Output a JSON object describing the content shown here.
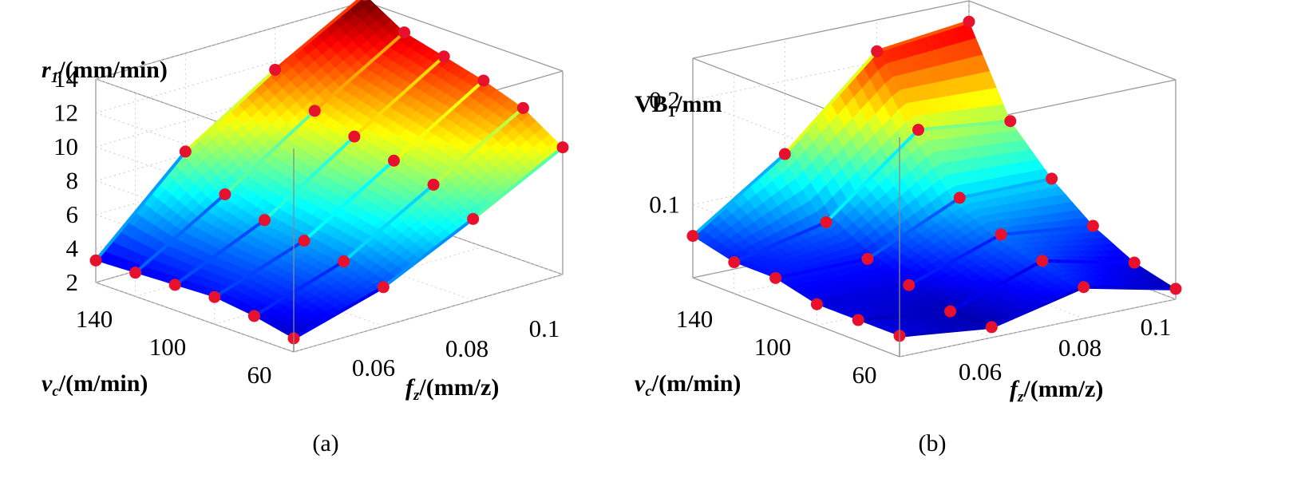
{
  "figure": {
    "panels": [
      "(a)",
      "(b)"
    ]
  },
  "chart_data": [
    {
      "type": "surface3d",
      "panel_label": "(a)",
      "zlabel": {
        "var": "r",
        "sub": "1",
        "unit": "/(mm/min)"
      },
      "xlabel": {
        "var": "f",
        "sub": "z",
        "unit": "/(mm/z)"
      },
      "ylabel": {
        "var": "v",
        "sub": "c",
        "unit": "/(m/min)"
      },
      "x_ticks": [
        "0.06",
        "0.08",
        "0.1"
      ],
      "y_ticks": [
        "140",
        "100",
        "60"
      ],
      "z_ticks": [
        "2",
        "4",
        "6",
        "8",
        "10",
        "12",
        "14"
      ],
      "xlim": [
        0.04,
        0.1
      ],
      "ylim": [
        60,
        160
      ],
      "zlim": [
        2,
        14
      ],
      "grid": true,
      "colormap": "jet",
      "fz": [
        0.04,
        0.06,
        0.08,
        0.1
      ],
      "vc": [
        60,
        80,
        100,
        120,
        140,
        160
      ],
      "values": [
        [
          2.8,
          4.3,
          6.8,
          9.5
        ],
        [
          3.3,
          5.0,
          8.0,
          11.0
        ],
        [
          3.6,
          5.4,
          8.6,
          11.8
        ],
        [
          3.5,
          5.8,
          9.2,
          12.4
        ],
        [
          3.4,
          6.5,
          9.9,
          13.0
        ],
        [
          3.3,
          8.2,
          11.5,
          14.4
        ]
      ],
      "point_color": "#e8112d"
    },
    {
      "type": "surface3d",
      "panel_label": "(b)",
      "zlabel": {
        "var": "VB",
        "sub": "1",
        "unit": "/mm"
      },
      "xlabel": {
        "var": "f",
        "sub": "z",
        "unit": "/(mm/z)"
      },
      "ylabel": {
        "var": "v",
        "sub": "c",
        "unit": "/(m/min)"
      },
      "x_ticks": [
        "0.06",
        "0.08",
        "0.1"
      ],
      "y_ticks": [
        "140",
        "100",
        "60"
      ],
      "z_ticks": [
        "0.1",
        "0.2"
      ],
      "xlim": [
        0.04,
        0.1
      ],
      "ylim": [
        60,
        160
      ],
      "zlim": [
        0.03,
        0.24
      ],
      "grid": true,
      "colormap": "jet",
      "fz": [
        0.04,
        0.06,
        0.08,
        0.1
      ],
      "vc": [
        60,
        80,
        100,
        120,
        140,
        160
      ],
      "values": [
        [
          0.05,
          0.04,
          0.06,
          0.04
        ],
        [
          0.05,
          0.04,
          0.07,
          0.05
        ],
        [
          0.05,
          0.05,
          0.08,
          0.07
        ],
        [
          0.06,
          0.06,
          0.1,
          0.1
        ],
        [
          0.06,
          0.08,
          0.15,
          0.14
        ],
        [
          0.07,
          0.13,
          0.21,
          0.22
        ]
      ],
      "point_color": "#e8112d"
    }
  ]
}
